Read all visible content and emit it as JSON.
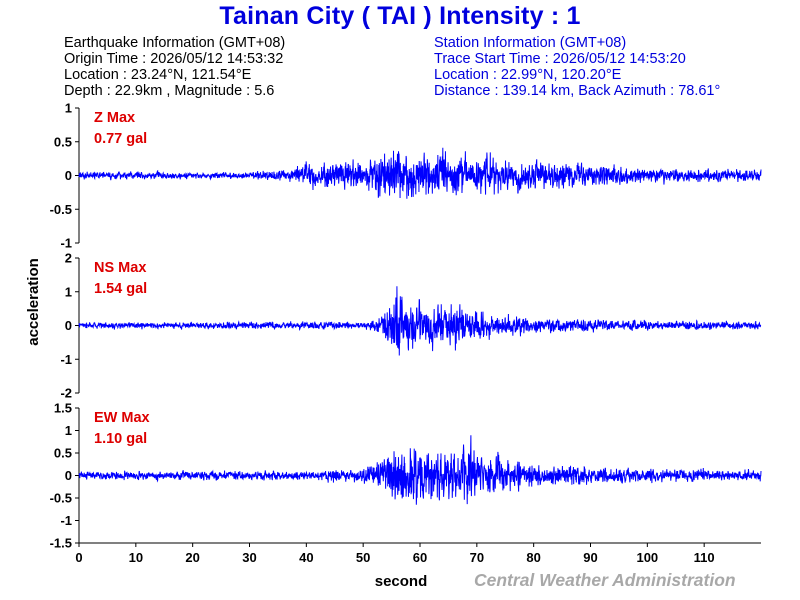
{
  "header": {
    "title": "Tainan City ( TAI ) Intensity : 1"
  },
  "earthquake_info": {
    "heading": "Earthquake Information  (GMT+08)",
    "origin_time": "Origin Time : 2026/05/12 14:53:32",
    "location": "Location : 23.24°N, 121.54°E",
    "depth_magnitude": "Depth : 22.9km , Magnitude : 5.6"
  },
  "station_info": {
    "heading": "Station Information  (GMT+08)",
    "trace_start": "Trace Start Time : 2026/05/12 14:53:20",
    "location": "Location : 22.99°N, 120.20°E",
    "distance": "Distance : 139.14 km, Back Azimuth : 78.61°"
  },
  "footer": {
    "credit": "Central Weather Administration"
  },
  "colors": {
    "trace": "#0000ff",
    "title": "#0000dd",
    "max_label": "#dd0000",
    "credit": "#a8a8a8"
  },
  "chart_data": {
    "type": "line",
    "xlabel": "second",
    "ylabel": "acceleration",
    "xlim": [
      0,
      120
    ],
    "xticks": [
      0,
      10,
      20,
      30,
      40,
      50,
      60,
      70,
      80,
      90,
      100,
      110
    ],
    "xtick_labels": [
      "0",
      "10",
      "20",
      "30",
      "40",
      "50",
      "60",
      "70",
      "80",
      "90",
      "100",
      "110"
    ],
    "panels": [
      {
        "component": "Z",
        "max_label": "Z Max",
        "max_value": "0.77 gal",
        "ylim": [
          -1,
          1
        ],
        "yticks": [
          1,
          0.5,
          0,
          -0.5,
          -1
        ],
        "ytick_labels": [
          "1",
          "0.5",
          "0",
          "-0.5",
          "-1"
        ],
        "envelope": {
          "t": [
            0,
            30,
            37,
            40,
            50,
            53,
            56,
            58,
            62,
            66,
            70,
            75,
            80,
            90,
            100,
            110,
            120
          ],
          "amp": [
            0.06,
            0.06,
            0.1,
            0.22,
            0.26,
            0.38,
            0.48,
            0.42,
            0.36,
            0.36,
            0.34,
            0.28,
            0.22,
            0.17,
            0.12,
            0.11,
            0.1
          ]
        }
      },
      {
        "component": "NS",
        "max_label": "NS Max",
        "max_value": "1.54 gal",
        "ylim": [
          -2,
          2
        ],
        "yticks": [
          2,
          1,
          0,
          -1,
          -2
        ],
        "ytick_labels": [
          "2",
          "1",
          "0",
          "-1",
          "-2"
        ],
        "envelope": {
          "t": [
            0,
            50,
            53,
            55,
            56,
            58,
            60,
            64,
            67,
            70,
            75,
            80,
            90,
            100,
            120
          ],
          "amp": [
            0.1,
            0.12,
            0.25,
            0.8,
            1.2,
            0.95,
            0.75,
            0.7,
            0.72,
            0.5,
            0.35,
            0.26,
            0.2,
            0.15,
            0.13
          ]
        }
      },
      {
        "component": "EW",
        "max_label": "EW Max",
        "max_value": "1.10 gal",
        "ylim": [
          -1.5,
          1.5
        ],
        "yticks": [
          1.5,
          1,
          0.5,
          0,
          -0.5,
          -1,
          -1.5
        ],
        "ytick_labels": [
          "1.5",
          "1",
          "0.5",
          "0",
          "-0.5",
          "-1",
          "-1.5"
        ],
        "envelope": {
          "t": [
            0,
            40,
            50,
            53,
            55,
            57,
            60,
            64,
            68,
            72,
            78,
            85,
            100,
            120
          ],
          "amp": [
            0.1,
            0.12,
            0.18,
            0.4,
            0.72,
            0.75,
            0.7,
            0.6,
            0.78,
            0.5,
            0.32,
            0.25,
            0.17,
            0.13
          ]
        }
      }
    ]
  }
}
